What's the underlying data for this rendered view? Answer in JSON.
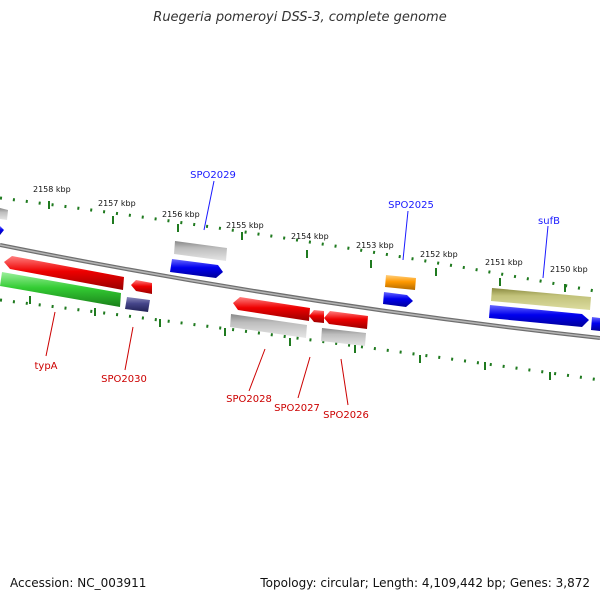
{
  "title": "Ruegeria pomeroyi DSS-3, complete genome",
  "footer": {
    "accession": "Accession: NC_003911",
    "summary": "Topology: circular; Length: 4,109,442 bp; Genes: 3,872"
  },
  "scale_labels": [
    "2158 kbp",
    "2157 kbp",
    "2156 kbp",
    "2155 kbp",
    "2154 kbp",
    "2153 kbp",
    "2152 kbp",
    "2151 kbp",
    "2150 kbp"
  ],
  "genes": {
    "spo2029": "SPO2029",
    "spo2025": "SPO2025",
    "sufb": "sufB",
    "typa": "typA",
    "spo2030": "SPO2030",
    "spo2028": "SPO2028",
    "spo2027": "SPO2027",
    "spo2026": "SPO2026"
  },
  "colors": {
    "blue_label": "#1a1aff",
    "red_label": "#cc0000",
    "tick": "#1f7a1f",
    "backbone": "#7a7a7a"
  }
}
